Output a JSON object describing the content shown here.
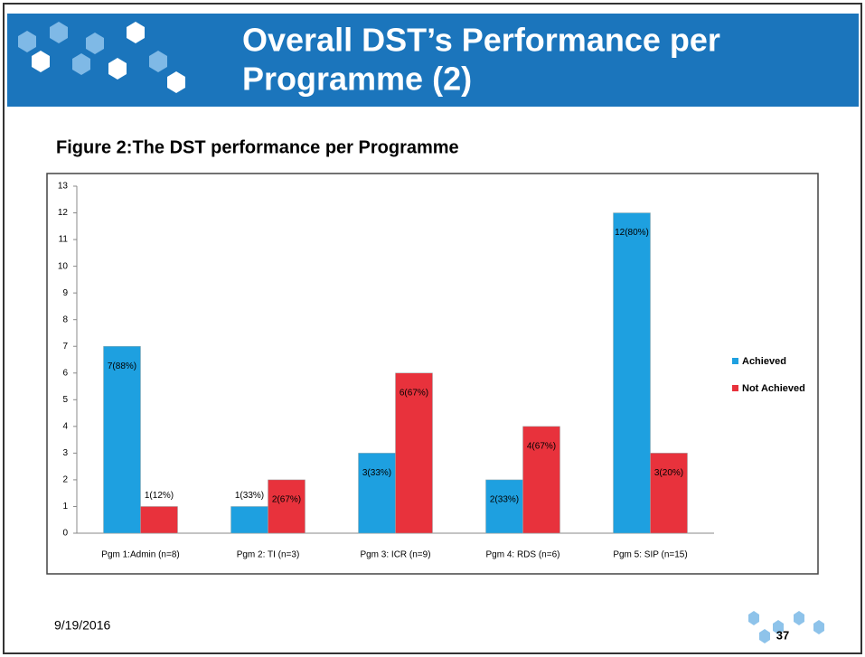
{
  "header": {
    "title_line1": "Overall DST’s Performance per",
    "title_line2": "Programme (2)"
  },
  "figure_caption": "Figure 2:The DST performance per Programme",
  "chart_data": {
    "type": "bar",
    "categories": [
      "Pgm 1:Admin (n=8)",
      "Pgm 2:  TI (n=3)",
      "Pgm 3: ICR (n=9)",
      "Pgm 4: RDS (n=6)",
      "Pgm 5: SIP (n=15)"
    ],
    "series": [
      {
        "name": "Achieved",
        "color": "#1ea0e0",
        "values": [
          7,
          1,
          3,
          2,
          12
        ],
        "value_labels": [
          "7(88%)",
          "1(33%)",
          "3(33%)",
          "2(33%)",
          "12(80%)"
        ]
      },
      {
        "name": "Not Achieved",
        "color": "#e8323c",
        "values": [
          1,
          2,
          6,
          4,
          3
        ],
        "value_labels": [
          "1(12%)",
          "2(67%)",
          "6(67%)",
          "4(67%)",
          "3(20%)"
        ]
      }
    ],
    "ylim": [
      0,
      13
    ],
    "yticks": [
      0,
      1,
      2,
      3,
      4,
      5,
      6,
      7,
      8,
      9,
      10,
      11,
      12,
      13
    ],
    "legend": "right"
  },
  "footer": {
    "date": "9/19/2016",
    "page_number": "37"
  }
}
